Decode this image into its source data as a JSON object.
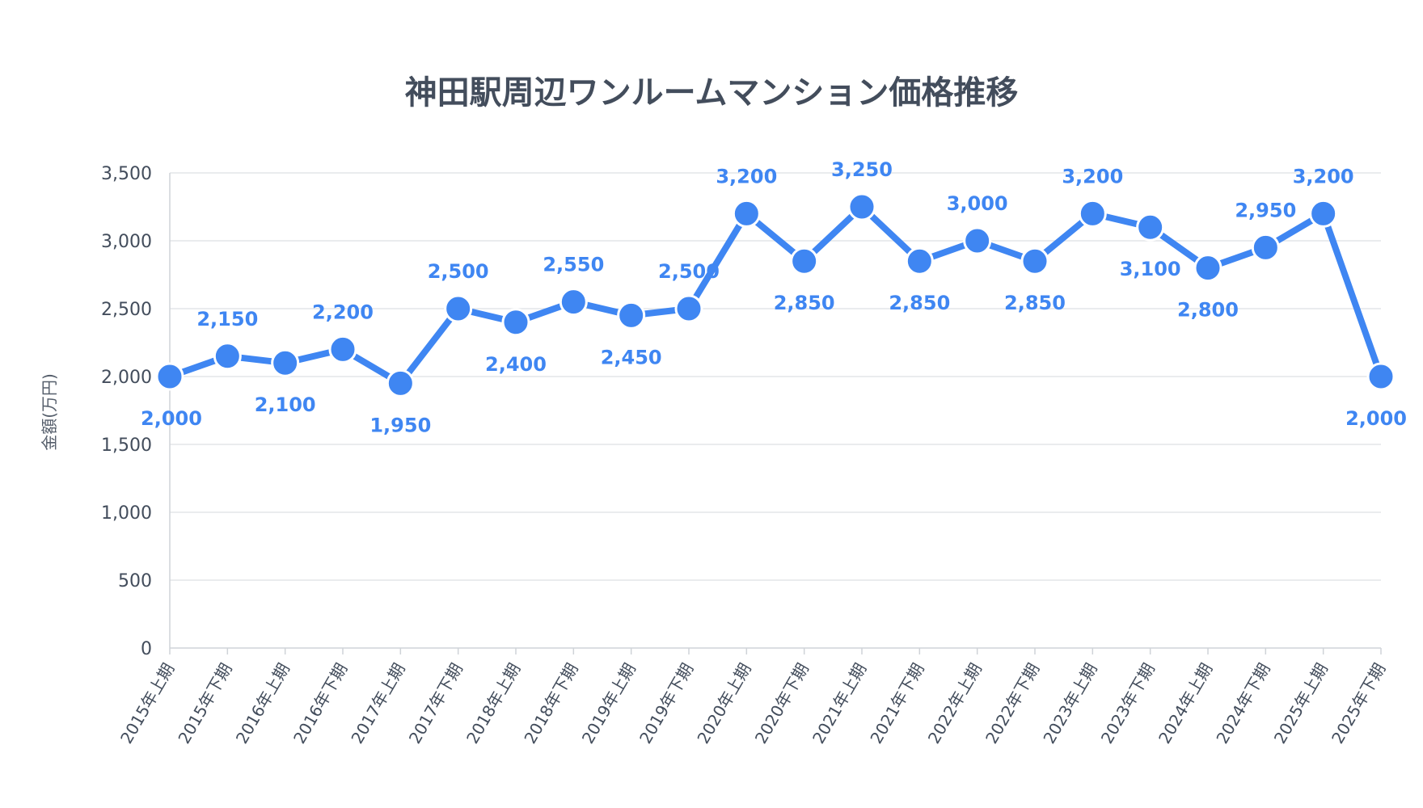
{
  "chart_data": {
    "type": "line",
    "title": "神田駅周辺ワンルームマンション価格推移",
    "ylabel": "金額(万円)",
    "xlabel": "",
    "ylim": [
      0,
      3500
    ],
    "yticks": [
      0,
      500,
      1000,
      1500,
      2000,
      2500,
      3000,
      3500
    ],
    "ytick_labels": [
      "0",
      "500",
      "1,000",
      "1,500",
      "2,000",
      "2,500",
      "3,000",
      "3,500"
    ],
    "grid": true,
    "legend": "none",
    "color": "#3f86f2",
    "categories": [
      "2015年上期",
      "2015年下期",
      "2016年上期",
      "2016年下期",
      "2017年上期",
      "2017年下期",
      "2018年上期",
      "2018年下期",
      "2019年上期",
      "2019年下期",
      "2020年上期",
      "2020年下期",
      "2021年上期",
      "2021年下期",
      "2022年上期",
      "2022年下期",
      "2023年上期",
      "2023年下期",
      "2024年上期",
      "2024年下期",
      "2025年上期",
      "2025年下期"
    ],
    "values": [
      2000,
      2150,
      2100,
      2200,
      1950,
      2500,
      2400,
      2550,
      2450,
      2500,
      3200,
      2850,
      3250,
      2850,
      3000,
      2850,
      3200,
      3100,
      2800,
      2950,
      3200,
      2000
    ],
    "data_labels": [
      "2,000",
      "2,150",
      "2,100",
      "2,200",
      "1,950",
      "2,500",
      "2,400",
      "2,550",
      "2,450",
      "2,500",
      "3,200",
      "2,850",
      "3,250",
      "2,850",
      "3,000",
      "2,850",
      "3,200",
      "3,100",
      "2,800",
      "2,950",
      "3,200",
      "2,000"
    ]
  }
}
